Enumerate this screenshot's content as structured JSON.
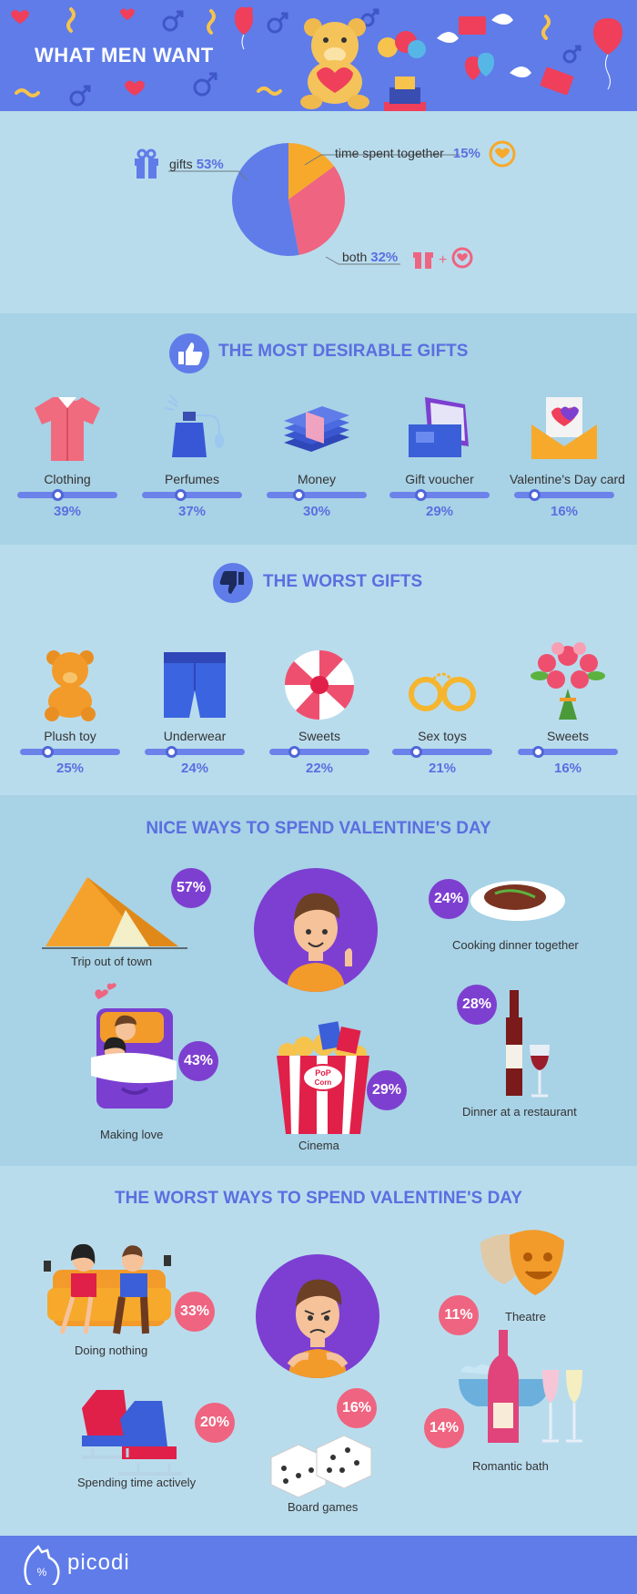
{
  "header": {
    "title": "WHAT MEN WANT"
  },
  "chart_data": [
    {
      "type": "pie",
      "slices": [
        {
          "label": "gifts",
          "value": 53,
          "display": "53%",
          "color": "#5f7ce9"
        },
        {
          "label": "time spent together",
          "value": 15,
          "display": "15%",
          "color": "#f6a92b"
        },
        {
          "label": "both",
          "value": 32,
          "display": "32%",
          "color": "#ef6480"
        }
      ]
    },
    {
      "type": "bar",
      "title": "THE MOST DESIRABLE GIFTS",
      "categories": [
        "Clothing",
        "Perfumes",
        "Money",
        "Gift voucher",
        "Valentine's Day card"
      ],
      "values": [
        39,
        37,
        30,
        29,
        16
      ],
      "labels": [
        "39%",
        "37%",
        "30%",
        "29%",
        "16%"
      ]
    },
    {
      "type": "bar",
      "title": "THE WORST GIFTS",
      "categories": [
        "Plush toy",
        "Underwear",
        "Sweets",
        "Sex toys",
        "Sweets"
      ],
      "values": [
        25,
        24,
        22,
        21,
        16
      ],
      "labels": [
        "25%",
        "24%",
        "22%",
        "21%",
        "16%"
      ]
    },
    {
      "type": "bar",
      "title": "NICE WAYS TO SPEND VALENTINE'S DAY",
      "categories": [
        "Trip out of town",
        "Making love",
        "Cinema",
        "Dinner at a restaurant",
        "Cooking dinner together"
      ],
      "values": [
        57,
        43,
        29,
        28,
        24
      ],
      "labels": [
        "57%",
        "43%",
        "29%",
        "28%",
        "24%"
      ]
    },
    {
      "type": "bar",
      "title": "THE WORST WAYS TO SPEND VALENTINE'S DAY",
      "categories": [
        "Doing nothing",
        "Spending time actively",
        "Board games",
        "Romantic bath",
        "Theatre"
      ],
      "values": [
        33,
        20,
        16,
        14,
        11
      ],
      "labels": [
        "33%",
        "20%",
        "16%",
        "14%",
        "11%"
      ]
    }
  ],
  "colors": {
    "accent": "#5a6fe0",
    "purple": "#7d3fd0",
    "pink": "#ef6480",
    "orange": "#f6a92b"
  },
  "footer": {
    "brand": "picodi"
  }
}
